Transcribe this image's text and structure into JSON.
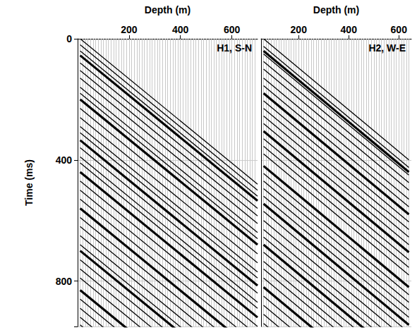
{
  "chart_data": [
    {
      "type": "line",
      "title": "H1, S-N",
      "xlabel": "Depth (m)",
      "ylabel": "Time (ms)",
      "xlim": [
        0,
        700
      ],
      "xticks": [
        200,
        400,
        600
      ],
      "ylim": [
        0,
        950
      ],
      "yticks": [
        0,
        400,
        800
      ],
      "grid": true,
      "traces": {
        "color": "#c8c8c8",
        "x": [
          10,
          20,
          30,
          40,
          50,
          60,
          70,
          80,
          90,
          100,
          110,
          120,
          130,
          140,
          150,
          160,
          170,
          180,
          190,
          200,
          210,
          220,
          230,
          240,
          250,
          260,
          270,
          280,
          290,
          300,
          310,
          320,
          330,
          340,
          350,
          360,
          370,
          380,
          390,
          400,
          410,
          420,
          430,
          440,
          450,
          460,
          470,
          480,
          490,
          500,
          510,
          520,
          530,
          540,
          550,
          560,
          570,
          580,
          590,
          600,
          610,
          620,
          630,
          640,
          650,
          660,
          670,
          680,
          690
        ]
      },
      "series": [
        {
          "line_style": "thin",
          "color": "#000000",
          "x": [
            10,
            700
          ],
          "y0": [
            0,
            20,
            40,
            80,
            105,
            130,
            160,
            180,
            230,
            260,
            290,
            310,
            360,
            390,
            410,
            470,
            500,
            530,
            590,
            620,
            650,
            680,
            730,
            760,
            790,
            860,
            890,
            920,
            945
          ],
          "y1": [
            480,
            500,
            520,
            560,
            585,
            610,
            640,
            660,
            710,
            740,
            770,
            790,
            840,
            870,
            890,
            950,
            980,
            1010,
            1070,
            1100,
            1130,
            1160,
            1210,
            1240,
            1270,
            1340,
            1370,
            1400,
            1425
          ]
        },
        {
          "line_style": "thick",
          "color": "#000000",
          "x": [
            10,
            700
          ],
          "y0": [
            55,
            200,
            335,
            440,
            560,
            700,
            830
          ],
          "y1": [
            535,
            680,
            815,
            920,
            1040,
            1180,
            1310
          ]
        }
      ]
    },
    {
      "type": "line",
      "title": "H2, W-E",
      "xlabel": "Depth (m)",
      "tick_labels": "x",
      "xlim": [
        50,
        650
      ],
      "xticks": [
        200,
        400,
        600
      ],
      "ylim": [
        0,
        950
      ],
      "yticks": [
        0,
        400,
        800
      ],
      "grid": true,
      "traces": {
        "color": "#c8c8c8",
        "x": [
          60,
          70,
          80,
          90,
          100,
          110,
          120,
          130,
          140,
          150,
          160,
          170,
          180,
          190,
          200,
          210,
          220,
          230,
          240,
          250,
          260,
          270,
          280,
          290,
          300,
          310,
          320,
          330,
          340,
          350,
          360,
          370,
          380,
          390,
          400,
          410,
          420,
          430,
          440,
          450,
          460,
          470,
          480,
          490,
          500,
          510,
          520,
          530,
          540,
          550,
          560,
          570,
          580,
          590,
          600,
          610,
          620,
          630,
          640
        ]
      },
      "series": [
        {
          "line_style": "thin",
          "color": "#000000",
          "x": [
            60,
            640
          ],
          "y0": [
            0,
            25,
            50,
            75,
            100,
            130,
            155,
            205,
            230,
            255,
            280,
            330,
            355,
            380,
            445,
            470,
            495,
            520,
            570,
            600,
            630,
            655,
            705,
            735,
            760,
            790,
            850,
            880,
            910,
            940
          ],
          "y1": [
            400,
            425,
            450,
            475,
            500,
            530,
            555,
            605,
            630,
            655,
            680,
            730,
            755,
            780,
            845,
            870,
            895,
            920,
            970,
            1000,
            1030,
            1055,
            1105,
            1135,
            1160,
            1190,
            1250,
            1280,
            1310,
            1340
          ]
        },
        {
          "line_style": "thick",
          "color": "#000000",
          "x": [
            60,
            640
          ],
          "y0": [
            40,
            180,
            305,
            420,
            545,
            680,
            820
          ],
          "y1": [
            440,
            580,
            705,
            820,
            945,
            1080,
            1220
          ]
        }
      ]
    }
  ]
}
